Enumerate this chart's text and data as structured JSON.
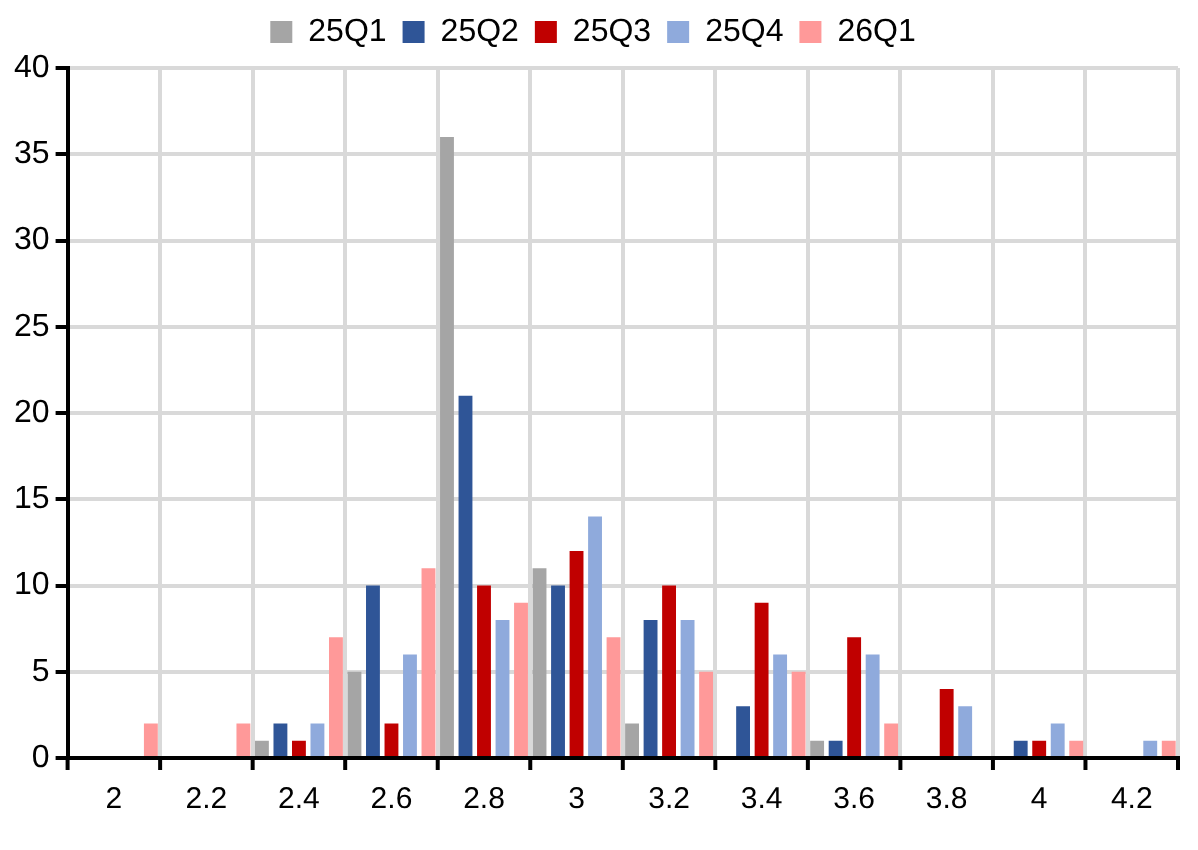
{
  "chart_data": {
    "type": "bar",
    "categories": [
      "2",
      "2.2",
      "2.4",
      "2.6",
      "2.8",
      "3",
      "3.2",
      "3.4",
      "3.6",
      "3.8",
      "4",
      "4.2"
    ],
    "series": [
      {
        "name": "25Q1",
        "color": "#a5a5a5",
        "values": [
          0,
          0,
          1,
          5,
          36,
          11,
          2,
          0,
          1,
          0,
          0,
          0
        ]
      },
      {
        "name": "25Q2",
        "color": "#2f5597",
        "values": [
          0,
          0,
          2,
          10,
          21,
          10,
          8,
          3,
          1,
          0,
          1,
          0
        ]
      },
      {
        "name": "25Q3",
        "color": "#c00000",
        "values": [
          0,
          0,
          1,
          2,
          10,
          12,
          10,
          9,
          7,
          4,
          1,
          0
        ]
      },
      {
        "name": "25Q4",
        "color": "#8faadc",
        "values": [
          0,
          0,
          2,
          6,
          8,
          14,
          8,
          6,
          6,
          3,
          2,
          1
        ]
      },
      {
        "name": "26Q1",
        "color": "#ff9999",
        "values": [
          2,
          2,
          7,
          11,
          9,
          7,
          5,
          5,
          2,
          0,
          1,
          1
        ]
      }
    ],
    "ylim": [
      0,
      40
    ],
    "yticks": [
      0,
      5,
      10,
      15,
      20,
      25,
      30,
      35,
      40
    ],
    "grid": true,
    "legend": "top"
  }
}
